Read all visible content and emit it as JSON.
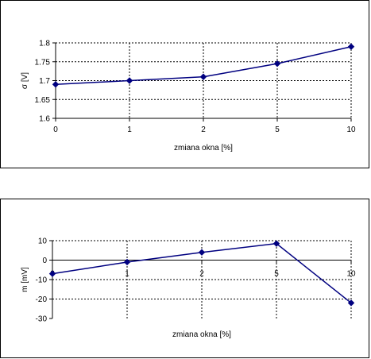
{
  "chart_data": [
    {
      "type": "line",
      "categories": [
        "0",
        "1",
        "2",
        "5",
        "10"
      ],
      "values": [
        1.69,
        1.7,
        1.71,
        1.745,
        1.79
      ],
      "ylabel": "σ [V]",
      "xlabel": "zmiana okna [%]",
      "ylim": [
        1.6,
        1.8
      ],
      "yticks": [
        "1.6",
        "1.65",
        "1.7",
        "1.75",
        "1.8"
      ],
      "grid": true,
      "line_color": "#000080",
      "marker": "diamond"
    },
    {
      "type": "line",
      "categories": [
        "0",
        "1",
        "2",
        "5",
        "10"
      ],
      "values": [
        -7,
        -1,
        4,
        8.5,
        -22
      ],
      "ylabel": "m [mV]",
      "xlabel": "zmiana okna [%]",
      "ylim": [
        -30,
        10
      ],
      "yticks": [
        "-30",
        "-20",
        "-10",
        "0",
        "10"
      ],
      "grid": true,
      "line_color": "#000080",
      "marker": "diamond"
    }
  ]
}
